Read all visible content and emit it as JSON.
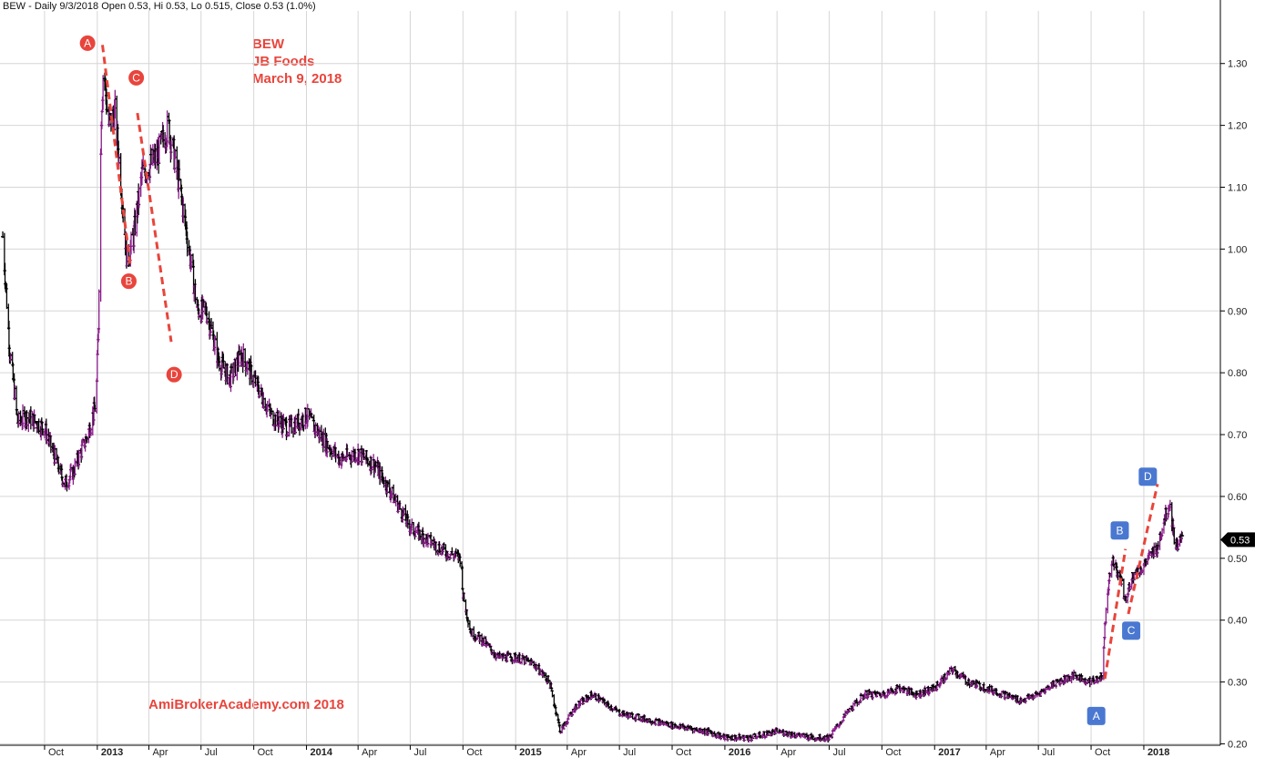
{
  "header": {
    "text": "BEW - Daily 9/3/2018 Open 0.53, Hi 0.53, Lo 0.515, Close 0.53 (1.0%)"
  },
  "title": {
    "line1": "BEW",
    "line2": "JB Foods",
    "line3": "March 9, 2018"
  },
  "watermark": "AmiBrokerAcademy.com  2018",
  "last_price": {
    "label": "0.53",
    "value": 0.53,
    "bg": "#000000"
  },
  "colors": {
    "up": "#8a1a8a",
    "down": "#000000",
    "annotation": "#e8453c",
    "box_marker": "#4a78d1",
    "grid": "#d6d6d6"
  },
  "chart_data": {
    "type": "line",
    "title": "BEW JB Foods March 9, 2018",
    "xlabel": "",
    "ylabel": "",
    "ylim": [
      0.155,
      1.36
    ],
    "y_ticks": [
      0.2,
      0.3,
      0.4,
      0.5,
      0.6,
      0.7,
      0.8,
      0.9,
      1.0,
      1.1,
      1.2,
      1.3
    ],
    "y_tick_labels": [
      "0.20",
      "0.30",
      "0.40",
      "0.50",
      "0.60",
      "0.70",
      "0.80",
      "0.90",
      "1.00",
      "1.10",
      "1.20",
      "1.30"
    ],
    "grid": true,
    "x_tick_labels": [
      {
        "t": "2012-10-01",
        "label": "Oct",
        "bold": false
      },
      {
        "t": "2013-01-01",
        "label": "2013",
        "bold": true
      },
      {
        "t": "2013-04-01",
        "label": "Apr",
        "bold": false
      },
      {
        "t": "2013-07-01",
        "label": "Jul",
        "bold": false
      },
      {
        "t": "2013-10-01",
        "label": "Oct",
        "bold": false
      },
      {
        "t": "2014-01-01",
        "label": "2014",
        "bold": true
      },
      {
        "t": "2014-04-01",
        "label": "Apr",
        "bold": false
      },
      {
        "t": "2014-07-01",
        "label": "Jul",
        "bold": false
      },
      {
        "t": "2014-10-01",
        "label": "Oct",
        "bold": false
      },
      {
        "t": "2015-01-01",
        "label": "2015",
        "bold": true
      },
      {
        "t": "2015-04-01",
        "label": "Apr",
        "bold": false
      },
      {
        "t": "2015-07-01",
        "label": "Jul",
        "bold": false
      },
      {
        "t": "2015-10-01",
        "label": "Oct",
        "bold": false
      },
      {
        "t": "2016-01-01",
        "label": "2016",
        "bold": true
      },
      {
        "t": "2016-04-01",
        "label": "Apr",
        "bold": false
      },
      {
        "t": "2016-07-01",
        "label": "Jul",
        "bold": false
      },
      {
        "t": "2016-10-01",
        "label": "Oct",
        "bold": false
      },
      {
        "t": "2017-01-01",
        "label": "2017",
        "bold": true
      },
      {
        "t": "2017-04-01",
        "label": "Apr",
        "bold": false
      },
      {
        "t": "2017-07-01",
        "label": "Jul",
        "bold": false
      },
      {
        "t": "2017-10-01",
        "label": "Oct",
        "bold": false
      },
      {
        "t": "2018-01-01",
        "label": "2018",
        "bold": true
      }
    ],
    "series": [
      {
        "values_keypoints": [
          [
            "2012-07-20",
            1.02
          ],
          [
            "2012-08-01",
            0.84
          ],
          [
            "2012-08-15",
            0.72
          ],
          [
            "2012-09-01",
            0.73
          ],
          [
            "2012-10-01",
            0.71
          ],
          [
            "2012-11-05",
            0.62
          ],
          [
            "2012-11-20",
            0.64
          ],
          [
            "2012-12-15",
            0.7
          ],
          [
            "2012-12-30",
            0.75
          ],
          [
            "2013-01-03",
            0.88
          ],
          [
            "2013-01-08",
            1.22
          ],
          [
            "2013-01-12",
            1.3
          ],
          [
            "2013-01-20",
            1.2
          ],
          [
            "2013-02-01",
            1.22
          ],
          [
            "2013-02-12",
            1.1
          ],
          [
            "2013-02-22",
            0.98
          ],
          [
            "2013-03-05",
            1.02
          ],
          [
            "2013-03-20",
            1.12
          ],
          [
            "2013-04-15",
            1.15
          ],
          [
            "2013-05-05",
            1.2
          ],
          [
            "2013-05-25",
            1.1
          ],
          [
            "2013-06-10",
            1.0
          ],
          [
            "2013-06-25",
            0.9
          ],
          [
            "2013-07-10",
            0.9
          ],
          [
            "2013-08-01",
            0.82
          ],
          [
            "2013-08-20",
            0.79
          ],
          [
            "2013-09-10",
            0.83
          ],
          [
            "2013-10-01",
            0.79
          ],
          [
            "2013-11-01",
            0.73
          ],
          [
            "2013-12-01",
            0.71
          ],
          [
            "2014-01-01",
            0.73
          ],
          [
            "2014-02-01",
            0.69
          ],
          [
            "2014-03-01",
            0.66
          ],
          [
            "2014-04-01",
            0.67
          ],
          [
            "2014-05-01",
            0.65
          ],
          [
            "2014-06-01",
            0.6
          ],
          [
            "2014-07-01",
            0.55
          ],
          [
            "2014-08-01",
            0.53
          ],
          [
            "2014-09-01",
            0.51
          ],
          [
            "2014-09-28",
            0.5
          ],
          [
            "2014-10-01",
            0.44
          ],
          [
            "2014-10-15",
            0.38
          ],
          [
            "2014-11-01",
            0.37
          ],
          [
            "2014-12-01",
            0.34
          ],
          [
            "2015-01-01",
            0.34
          ],
          [
            "2015-02-01",
            0.33
          ],
          [
            "2015-03-01",
            0.3
          ],
          [
            "2015-03-20",
            0.22
          ],
          [
            "2015-04-15",
            0.26
          ],
          [
            "2015-05-15",
            0.28
          ],
          [
            "2015-07-01",
            0.25
          ],
          [
            "2015-08-15",
            0.24
          ],
          [
            "2015-10-01",
            0.23
          ],
          [
            "2015-12-01",
            0.22
          ],
          [
            "2016-01-01",
            0.21
          ],
          [
            "2016-02-15",
            0.21
          ],
          [
            "2016-04-01",
            0.22
          ],
          [
            "2016-06-01",
            0.21
          ],
          [
            "2016-07-01",
            0.21
          ],
          [
            "2016-08-01",
            0.25
          ],
          [
            "2016-09-01",
            0.28
          ],
          [
            "2016-10-01",
            0.28
          ],
          [
            "2016-11-01",
            0.29
          ],
          [
            "2016-12-01",
            0.28
          ],
          [
            "2017-01-01",
            0.29
          ],
          [
            "2017-02-01",
            0.32
          ],
          [
            "2017-03-01",
            0.3
          ],
          [
            "2017-04-01",
            0.29
          ],
          [
            "2017-05-01",
            0.28
          ],
          [
            "2017-06-01",
            0.27
          ],
          [
            "2017-07-01",
            0.28
          ],
          [
            "2017-08-01",
            0.3
          ],
          [
            "2017-09-01",
            0.31
          ],
          [
            "2017-10-01",
            0.3
          ],
          [
            "2017-10-20",
            0.31
          ],
          [
            "2017-10-27",
            0.42
          ],
          [
            "2017-11-05",
            0.5
          ],
          [
            "2017-11-20",
            0.47
          ],
          [
            "2017-12-01",
            0.43
          ],
          [
            "2017-12-10",
            0.47
          ],
          [
            "2017-12-25",
            0.48
          ],
          [
            "2018-01-10",
            0.5
          ],
          [
            "2018-01-25",
            0.52
          ],
          [
            "2018-02-05",
            0.56
          ],
          [
            "2018-02-15",
            0.59
          ],
          [
            "2018-02-25",
            0.52
          ],
          [
            "2018-03-09",
            0.53
          ]
        ]
      }
    ],
    "annotations": {
      "round_markers": [
        {
          "label": "A",
          "t": "2012-12-15",
          "v": 1.333
        },
        {
          "label": "B",
          "t": "2013-02-25",
          "v": 0.948
        },
        {
          "label": "C",
          "t": "2013-03-10",
          "v": 1.277
        },
        {
          "label": "D",
          "t": "2013-05-15",
          "v": 0.797
        }
      ],
      "box_markers": [
        {
          "label": "A",
          "t": "2017-10-10",
          "v": 0.245
        },
        {
          "label": "B",
          "t": "2017-11-20",
          "v": 0.545
        },
        {
          "label": "C",
          "t": "2017-12-10",
          "v": 0.383
        },
        {
          "label": "D",
          "t": "2018-01-08",
          "v": 0.632
        }
      ],
      "trend_lines": [
        {
          "from": {
            "t": "2013-01-10",
            "v": 1.33
          },
          "to": {
            "t": "2013-02-28",
            "v": 0.97
          }
        },
        {
          "from": {
            "t": "2013-03-12",
            "v": 1.22
          },
          "to": {
            "t": "2013-05-10",
            "v": 0.85
          }
        },
        {
          "from": {
            "t": "2017-10-25",
            "v": 0.305
          },
          "to": {
            "t": "2017-11-30",
            "v": 0.515
          }
        },
        {
          "from": {
            "t": "2017-12-05",
            "v": 0.41
          },
          "to": {
            "t": "2018-01-25",
            "v": 0.62
          }
        }
      ]
    }
  }
}
